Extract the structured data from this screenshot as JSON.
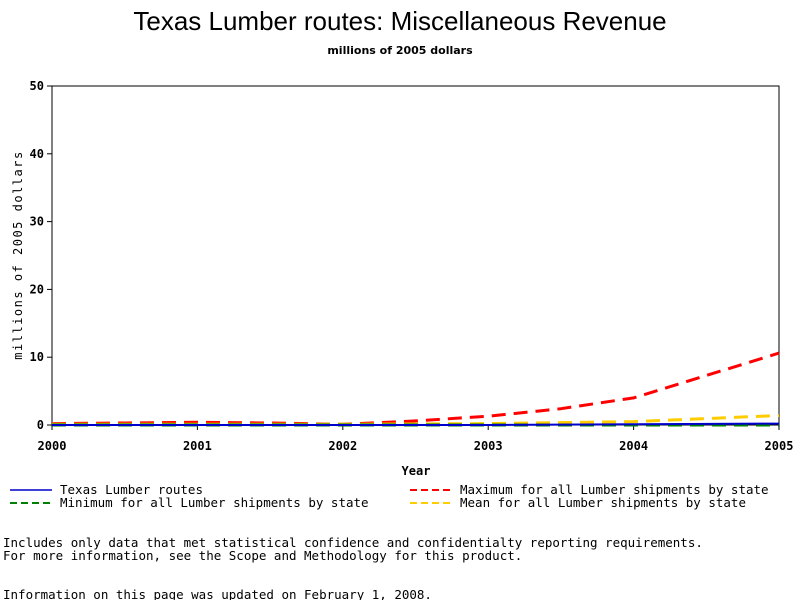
{
  "chart_data": {
    "type": "line",
    "title": "Texas Lumber routes: Miscellaneous Revenue",
    "subtitle": "millions of 2005 dollars",
    "xlabel": "Year",
    "ylabel": "millions of 2005 dollars",
    "xlim": [
      2000,
      2005
    ],
    "ylim": [
      0,
      50
    ],
    "x_ticks": [
      "2000",
      "2001",
      "2002",
      "2003",
      "2004",
      "2005"
    ],
    "y_ticks": [
      "0",
      "10",
      "20",
      "30",
      "40",
      "50"
    ],
    "grid": false,
    "legend_position": "bottom",
    "series": [
      {
        "name": "Texas Lumber routes",
        "color": "#0000cc",
        "dash": "solid",
        "x": [
          2000,
          2001,
          2002,
          2003,
          2004,
          2005
        ],
        "y": [
          0.0,
          0.0,
          0.0,
          0.0,
          0.1,
          0.2
        ]
      },
      {
        "name": "Maximum for all Lumber shipments by state",
        "color": "#ff0000",
        "dash": "dashed",
        "x": [
          2000,
          2000.5,
          2001,
          2001.5,
          2002,
          2002.5,
          2003,
          2003.5,
          2004,
          2004.5,
          2005
        ],
        "y": [
          0.2,
          0.3,
          0.4,
          0.3,
          0.1,
          0.6,
          1.3,
          2.4,
          4.0,
          7.3,
          10.6
        ]
      },
      {
        "name": "Minimum for all Lumber shipments by state",
        "color": "#008000",
        "dash": "dashed",
        "x": [
          2000,
          2001,
          2002,
          2003,
          2004,
          2005
        ],
        "y": [
          0.0,
          0.0,
          0.0,
          0.0,
          0.0,
          0.0
        ]
      },
      {
        "name": "Mean for all Lumber shipments by state",
        "color": "#ffcc00",
        "dash": "dashed",
        "x": [
          2000,
          2001,
          2002,
          2003,
          2004,
          2005
        ],
        "y": [
          0.1,
          0.1,
          0.1,
          0.2,
          0.5,
          1.4
        ]
      }
    ]
  },
  "notes": [
    "Includes only data that met statistical confidence and confidentialty reporting requirements.",
    "For more information, see the Scope and Methodology for this product."
  ],
  "updated": "Information on this page was updated on February 1, 2008."
}
